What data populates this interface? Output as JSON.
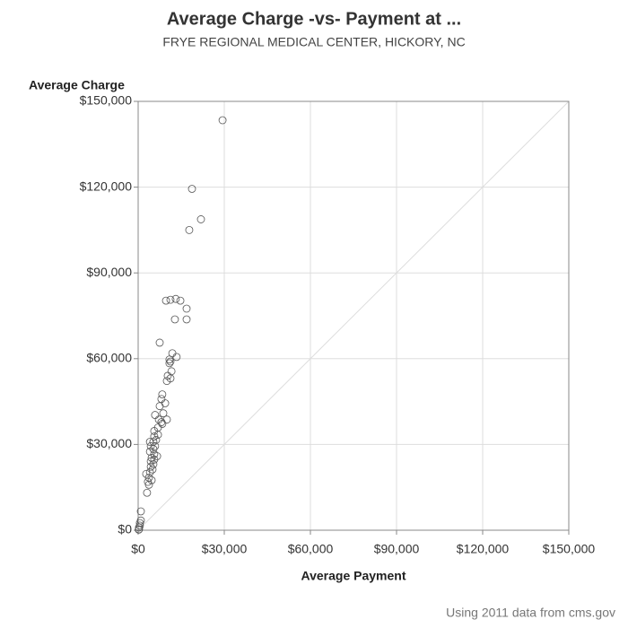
{
  "chart_data": {
    "type": "scatter",
    "title": "Average Charge -vs- Payment at ...",
    "subtitle": "FRYE REGIONAL MEDICAL CENTER, HICKORY, NC",
    "x_label": "Average Payment",
    "y_label": "Average Charge",
    "footnote": "Using 2011 data from cms.gov",
    "x": [
      29400,
      18750,
      21875,
      17800,
      16875,
      16875,
      12800,
      9700,
      11250,
      13100,
      14700,
      7500,
      11900,
      13400,
      10900,
      11250,
      10900,
      11600,
      10300,
      10000,
      11250,
      8400,
      8100,
      9400,
      7500,
      8750,
      10000,
      5900,
      7200,
      8100,
      8400,
      6900,
      5600,
      6900,
      5600,
      6250,
      5300,
      4100,
      4400,
      5900,
      5300,
      4100,
      5600,
      6600,
      4700,
      5600,
      4400,
      5300,
      4400,
      5000,
      4100,
      2800,
      3750,
      4700,
      3400,
      3750,
      3100,
      940,
      940,
      600,
      600,
      300,
      300,
      200
    ],
    "y": [
      143400,
      119400,
      108750,
      105000,
      77500,
      73750,
      73750,
      80300,
      80600,
      80900,
      80300,
      65600,
      61900,
      60600,
      59700,
      59000,
      58400,
      55600,
      54000,
      52200,
      53100,
      47500,
      45900,
      44400,
      43400,
      40900,
      38700,
      40300,
      38700,
      37800,
      37200,
      35900,
      34700,
      33400,
      32800,
      31600,
      30900,
      30900,
      29400,
      29400,
      28400,
      27500,
      26600,
      25900,
      25300,
      24700,
      24100,
      23100,
      22200,
      21250,
      20300,
      19700,
      18400,
      17500,
      16900,
      15900,
      13100,
      6600,
      3400,
      2500,
      1600,
      940,
      300,
      200
    ],
    "xlim": [
      0,
      150000
    ],
    "ylim": [
      0,
      150000
    ],
    "xticks": [
      {
        "value": 0,
        "label": "$0"
      },
      {
        "value": 30000,
        "label": "$30,000"
      },
      {
        "value": 60000,
        "label": "$60,000"
      },
      {
        "value": 90000,
        "label": "$90,000"
      },
      {
        "value": 120000,
        "label": "$120,000"
      },
      {
        "value": 150000,
        "label": "$150,000"
      }
    ],
    "yticks": [
      {
        "value": 0,
        "label": "$0"
      },
      {
        "value": 30000,
        "label": "$30,000"
      },
      {
        "value": 60000,
        "label": "$60,000"
      },
      {
        "value": 90000,
        "label": "$90,000"
      },
      {
        "value": 120000,
        "label": "$120,000"
      },
      {
        "value": 150000,
        "label": "$150,000"
      }
    ],
    "grid": true,
    "diagonal": true,
    "color": "#555555"
  }
}
